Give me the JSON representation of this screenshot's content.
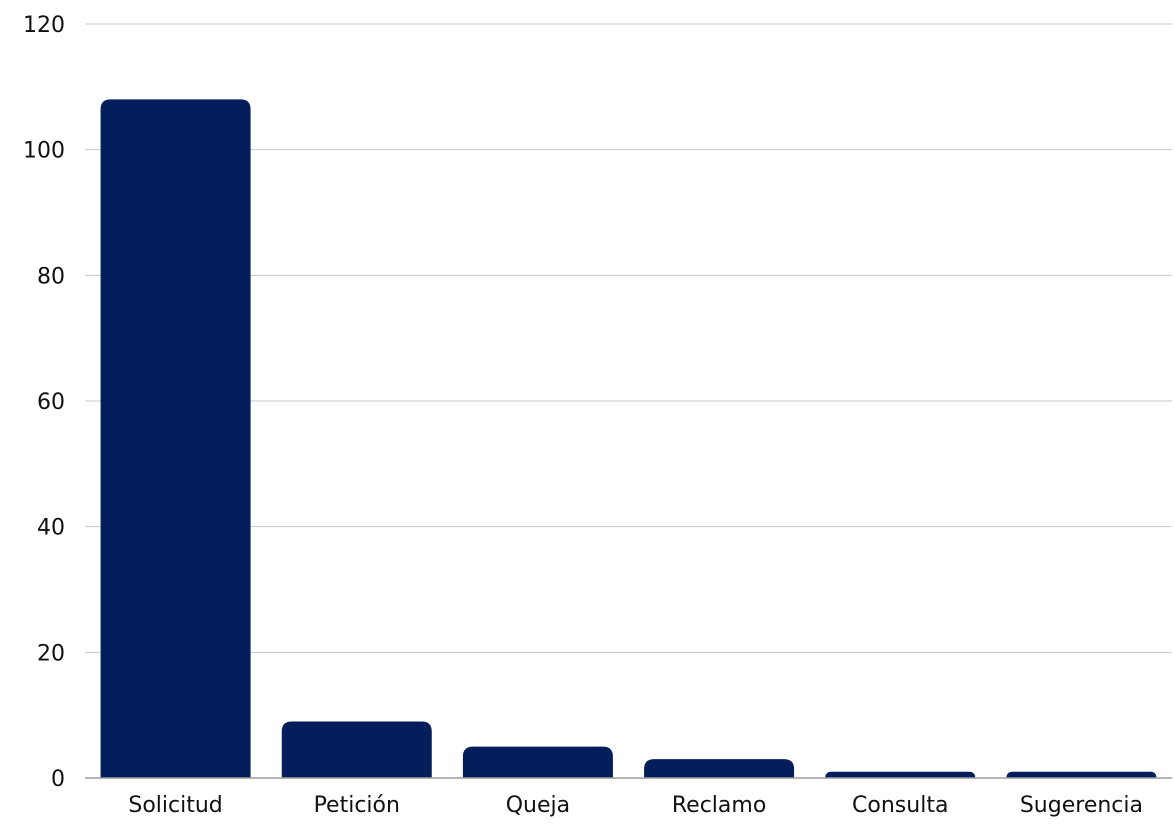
{
  "chart_data": {
    "type": "bar",
    "title": "",
    "xlabel": "",
    "ylabel": "",
    "categories": [
      "Solicitud",
      "Petición",
      "Queja",
      "Reclamo",
      "Consulta",
      "Sugerencia"
    ],
    "values": [
      108,
      9,
      5,
      3,
      1,
      1
    ],
    "ylim": [
      0,
      120
    ],
    "yticks": [
      0,
      20,
      40,
      60,
      80,
      100,
      120
    ],
    "grid": true,
    "legend": "none",
    "colors": {
      "bar": "#031e5a",
      "grid": "#c8c8c8",
      "axis": "#9e9e9e",
      "text": "#111111"
    }
  }
}
